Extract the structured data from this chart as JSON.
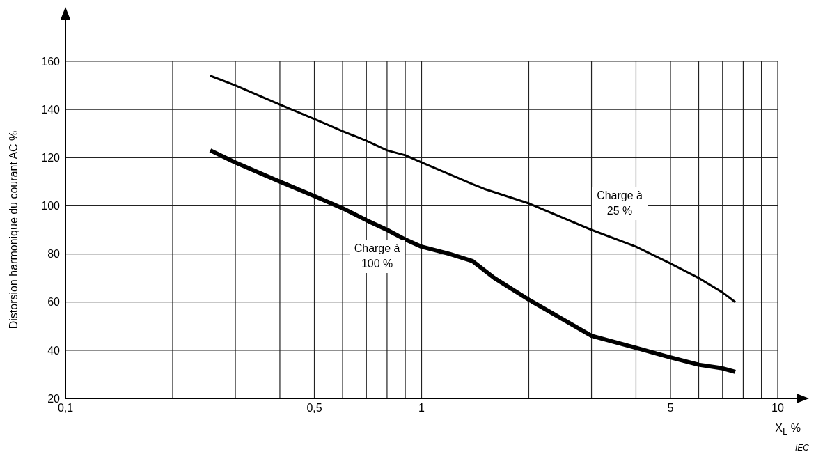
{
  "chart_data": {
    "type": "line",
    "xlabel": "X$_{L}$ %",
    "ylabel": "Distorsion harmonique du courant AC %",
    "annotations": [
      "IEC"
    ],
    "log": "x",
    "grid": true,
    "xlim": [
      0.1,
      10
    ],
    "xticks": [
      {
        "value": 0.1,
        "label": "0,1"
      },
      {
        "value": 0.2,
        "label": null
      },
      {
        "value": 0.3,
        "label": null
      },
      {
        "value": 0.4,
        "label": null
      },
      {
        "value": 0.5,
        "label": "0,5"
      },
      {
        "value": 0.6,
        "label": null
      },
      {
        "value": 0.7,
        "label": null
      },
      {
        "value": 0.8,
        "label": null
      },
      {
        "value": 0.9,
        "label": null
      },
      1,
      {
        "value": 2,
        "label": null
      },
      {
        "value": 3,
        "label": null
      },
      {
        "value": 4,
        "label": null
      },
      5,
      {
        "value": 6,
        "label": null
      },
      {
        "value": 7,
        "label": null
      },
      {
        "value": 8,
        "label": null
      },
      {
        "value": 9,
        "label": null
      },
      10
    ],
    "ylim": [
      20,
      160
    ],
    "yticks": [
      20,
      40,
      60,
      80,
      100,
      120,
      140,
      160
    ],
    "series": [
      {
        "name": "Charge à 25 %",
        "color": "#000000",
        "x": [
          0.255,
          0.3,
          0.4,
          0.5,
          0.6,
          0.7,
          0.8,
          0.9,
          1,
          1.39,
          1.5,
          2,
          3,
          4,
          5,
          6,
          7,
          7.6
        ],
        "values": [
          154,
          150,
          142,
          136,
          131,
          127,
          123,
          121,
          118,
          109,
          107,
          101,
          90,
          83,
          76,
          70,
          64,
          60
        ]
      },
      {
        "name": "Charge à 100 %",
        "color": "#000000",
        "x": [
          0.255,
          0.3,
          0.4,
          0.5,
          0.6,
          0.7,
          0.8,
          0.9,
          1,
          1.2,
          1.39,
          1.6,
          2,
          3,
          4,
          5,
          6,
          7,
          7.6
        ],
        "values": [
          123,
          118,
          110,
          104,
          99,
          94,
          90,
          86,
          83,
          80,
          77,
          70,
          61,
          46,
          41,
          37,
          34,
          32.5,
          31
        ]
      }
    ]
  }
}
